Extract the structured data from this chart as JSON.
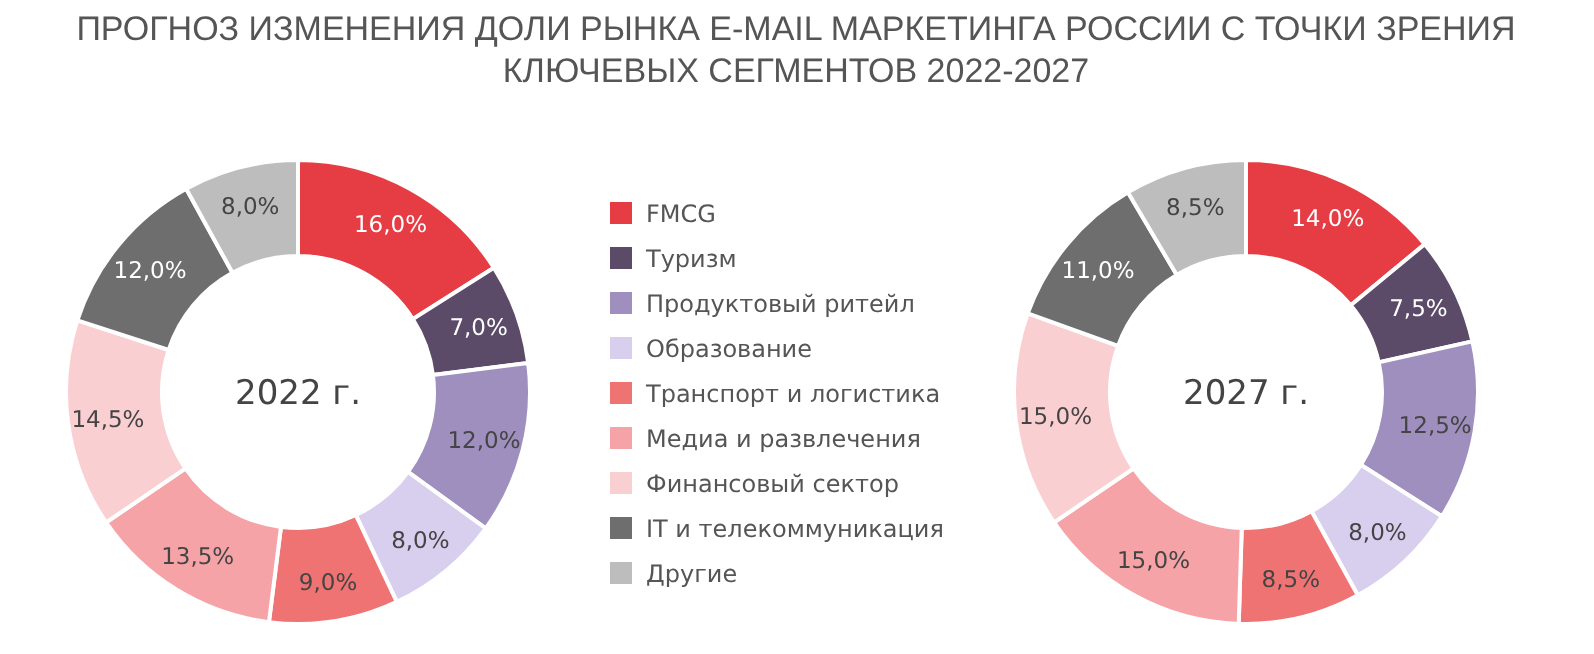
{
  "chart_data": [
    {
      "type": "donut",
      "title": "ПРОГНОЗ ИЗМЕНЕНИЯ ДОЛИ РЫНКА E-MAIL МАРКЕТИНГА РОССИИ С ТОЧКИ ЗРЕНИЯ КЛЮЧЕВЫХ СЕГМЕНТОВ 2022-2027",
      "annotations": [
        "2022 г."
      ],
      "legend": "right",
      "categories": [
        "FMCG",
        "Туризм",
        "Продуктовый ритейл",
        "Образование",
        "Транспорт и логистика",
        "Медиа и развлечения",
        "Финансовый сектор",
        "IT и телекоммуникация",
        "Другие"
      ],
      "values": [
        16,
        7,
        12,
        8,
        9,
        13.5,
        14.5,
        12,
        8
      ],
      "value_labels": [
        "16,0%",
        "7,0%",
        "12,0%",
        "8,0%",
        "9,0%",
        "13,5%",
        "14,5%",
        "12,0%",
        "8,0%"
      ],
      "colors": [
        "#e63c44",
        "#5b4a68",
        "#9f8fbf",
        "#d8cfee",
        "#ef7373",
        "#f5a3a7",
        "#f9cfd1",
        "#6e6e6e",
        "#bdbdbd"
      ]
    },
    {
      "type": "donut",
      "annotations": [
        "2027 г."
      ],
      "categories": [
        null,
        null,
        null,
        null,
        null,
        null,
        null,
        null,
        null
      ],
      "values": [
        14,
        7.5,
        12.5,
        8,
        8.5,
        15,
        15,
        11,
        8.5
      ],
      "value_labels": [
        "14,0%",
        "7,5%",
        "12,5%",
        "8,0%",
        "8,5%",
        "15,0%",
        "15,0%",
        "11,0%",
        "8,5%"
      ],
      "colors": [
        "#e63c44",
        "#5b4a68",
        "#9f8fbf",
        "#d8cfee",
        "#ef7373",
        "#f5a3a7",
        "#f9cfd1",
        "#6e6e6e",
        "#bdbdbd"
      ]
    }
  ]
}
